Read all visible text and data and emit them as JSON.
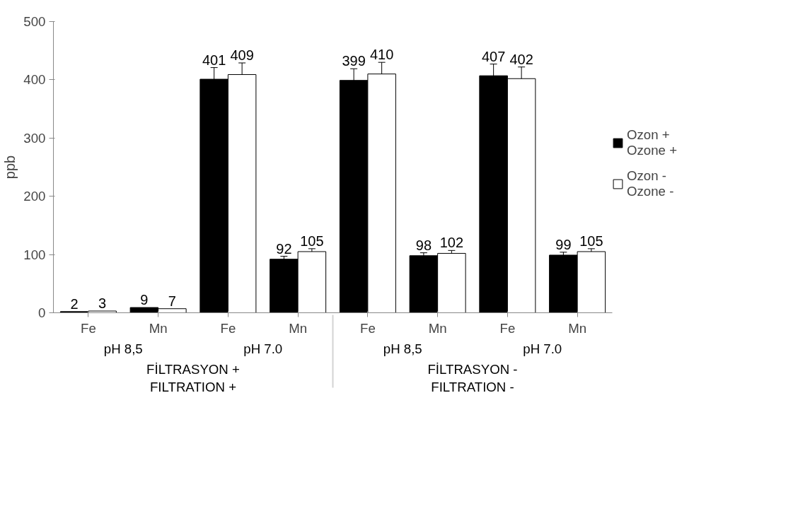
{
  "chart_data": {
    "type": "bar",
    "ylabel": "ppb",
    "categories": [
      "Fe",
      "Mn",
      "Fe",
      "Mn",
      "Fe",
      "Mn",
      "Fe",
      "Mn"
    ],
    "annotations": [
      "pH 8,5",
      "pH 7.0",
      "pH 8,5",
      "pH 7.0",
      "FİLTRASYON +\nFILTRATION +",
      "FİLTRASYON -\nFILTRATION -"
    ],
    "series": [
      {
        "name": "Ozon +\nOzone +",
        "color": "#000000",
        "values": [
          2,
          9,
          401,
          92,
          399,
          98,
          407,
          99
        ],
        "errors": [
          null,
          null,
          20,
          5,
          20,
          5,
          20,
          5
        ]
      },
      {
        "name": "Ozon -\nOzone -",
        "color": "#ffffff",
        "values": [
          3,
          7,
          409,
          105,
          410,
          102,
          402,
          105
        ],
        "errors": [
          null,
          null,
          20,
          5,
          20,
          5,
          20,
          5
        ]
      }
    ],
    "ylim": [
      0,
      500
    ],
    "yticks": [
      0,
      100,
      200,
      300,
      400,
      500
    ],
    "grid": false,
    "legend": "right",
    "data_labels": true
  }
}
